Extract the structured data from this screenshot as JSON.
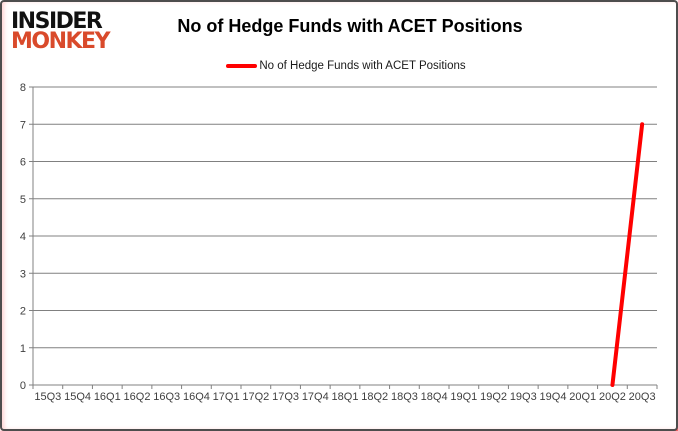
{
  "logo": {
    "line1": "INSIDER",
    "line2": "MONKEY",
    "accent_color": "#d94a2b"
  },
  "header": {
    "title": "No of Hedge Funds with ACET Positions"
  },
  "legend": {
    "label": "No of Hedge Funds with ACET Positions",
    "marker_color": "#ff0000"
  },
  "chart_data": {
    "type": "line",
    "title": "No of Hedge Funds with ACET Positions",
    "xlabel": "",
    "ylabel": "",
    "categories": [
      "15Q3",
      "15Q4",
      "16Q1",
      "16Q2",
      "16Q3",
      "16Q4",
      "17Q1",
      "17Q2",
      "17Q3",
      "17Q4",
      "18Q1",
      "18Q2",
      "18Q3",
      "18Q4",
      "19Q1",
      "19Q2",
      "19Q3",
      "19Q4",
      "20Q1",
      "20Q2",
      "20Q3"
    ],
    "series": [
      {
        "name": "No of Hedge Funds with ACET Positions",
        "color": "#ff0000",
        "values": [
          null,
          null,
          null,
          null,
          null,
          null,
          null,
          null,
          null,
          null,
          null,
          null,
          null,
          null,
          null,
          null,
          null,
          null,
          null,
          0,
          7
        ]
      }
    ],
    "ylim": [
      0,
      8
    ],
    "ytick_step": 1,
    "yticks": [
      0,
      1,
      2,
      3,
      4,
      5,
      6,
      7,
      8
    ],
    "grid": true,
    "legend_position": "top",
    "grid_color": "#808080",
    "axis_color": "#808080",
    "tick_label_color": "#3f3f3f"
  }
}
